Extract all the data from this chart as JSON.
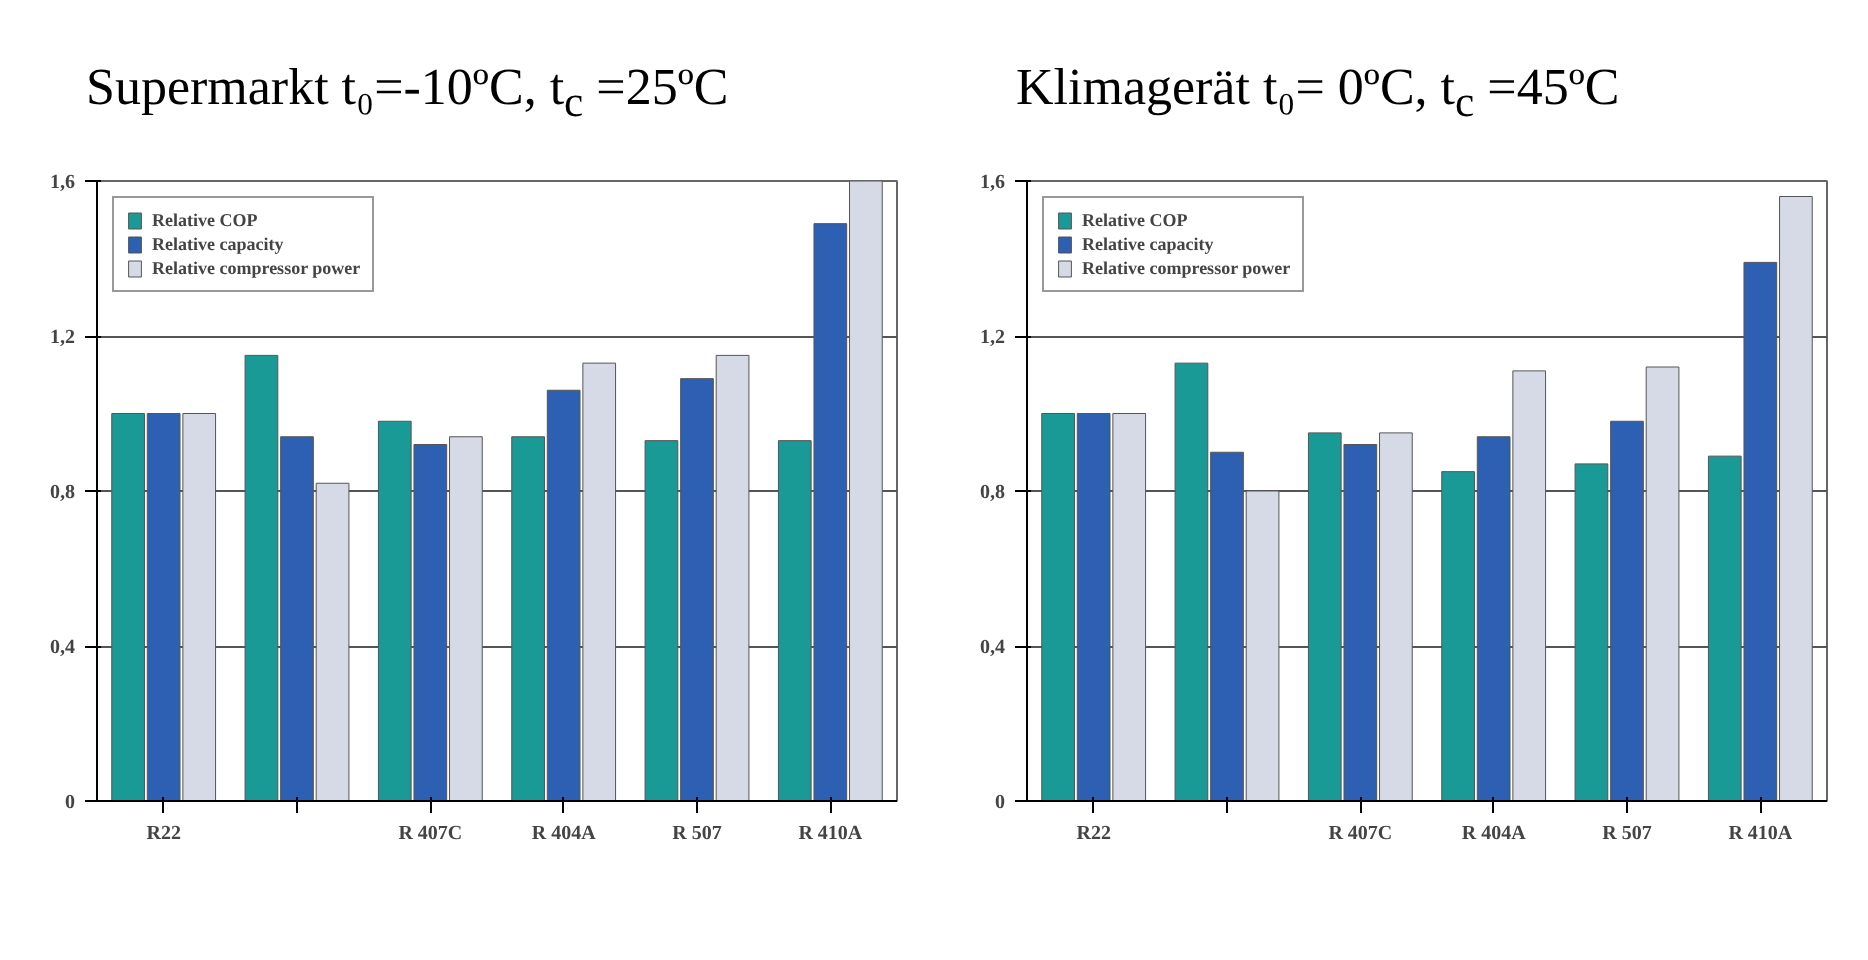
{
  "chart_data": [
    {
      "type": "bar",
      "title": "Supermarkt t₀=-10ºC, t$_{c}$ =25ºC",
      "categories": [
        "R22",
        null,
        "R 407C",
        "R 404A",
        "R 507",
        "R 410A"
      ],
      "ylim": [
        0,
        1.6
      ],
      "yticks": [
        {
          "value": 0,
          "label": "0"
        },
        {
          "value": 0.4,
          "label": "0,4"
        },
        {
          "value": 0.8,
          "label": "0,8"
        },
        {
          "value": 1.2,
          "label": "1,2"
        },
        {
          "value": 1.6,
          "label": "1,6"
        }
      ],
      "grid": "y",
      "legend": "top left",
      "series": [
        {
          "name": "Relative COP",
          "color": "#1a9a96",
          "values": [
            1.0,
            1.15,
            0.98,
            0.94,
            0.93,
            0.93
          ]
        },
        {
          "name": "Relative capacity",
          "color": "#2d5fb3",
          "values": [
            1.0,
            0.94,
            0.92,
            1.06,
            1.09,
            1.49
          ]
        },
        {
          "name": "Relative compressor power",
          "color": "#d5dae6",
          "values": [
            1.0,
            0.82,
            0.94,
            1.13,
            1.15,
            1.6
          ]
        }
      ]
    },
    {
      "type": "bar",
      "title": "Klimagerät t₀= 0ºC, t$_{c}$ =45ºC",
      "categories": [
        "R22",
        null,
        "R 407C",
        "R 404A",
        "R 507",
        "R 410A"
      ],
      "ylim": [
        0,
        1.6
      ],
      "yticks": [
        {
          "value": 0,
          "label": "0"
        },
        {
          "value": 0.4,
          "label": "0,4"
        },
        {
          "value": 0.8,
          "label": "0,8"
        },
        {
          "value": 1.2,
          "label": "1,2"
        },
        {
          "value": 1.6,
          "label": "1,6"
        }
      ],
      "grid": "y",
      "legend": "top left",
      "series": [
        {
          "name": "Relative COP",
          "color": "#1a9a96",
          "values": [
            1.0,
            1.13,
            0.95,
            0.85,
            0.87,
            0.89
          ]
        },
        {
          "name": "Relative capacity",
          "color": "#2d5fb3",
          "values": [
            1.0,
            0.9,
            0.92,
            0.94,
            0.98,
            1.39
          ]
        },
        {
          "name": "Relative compressor power",
          "color": "#d5dae6",
          "values": [
            1.0,
            0.8,
            0.95,
            1.11,
            1.12,
            1.56
          ]
        }
      ]
    }
  ]
}
